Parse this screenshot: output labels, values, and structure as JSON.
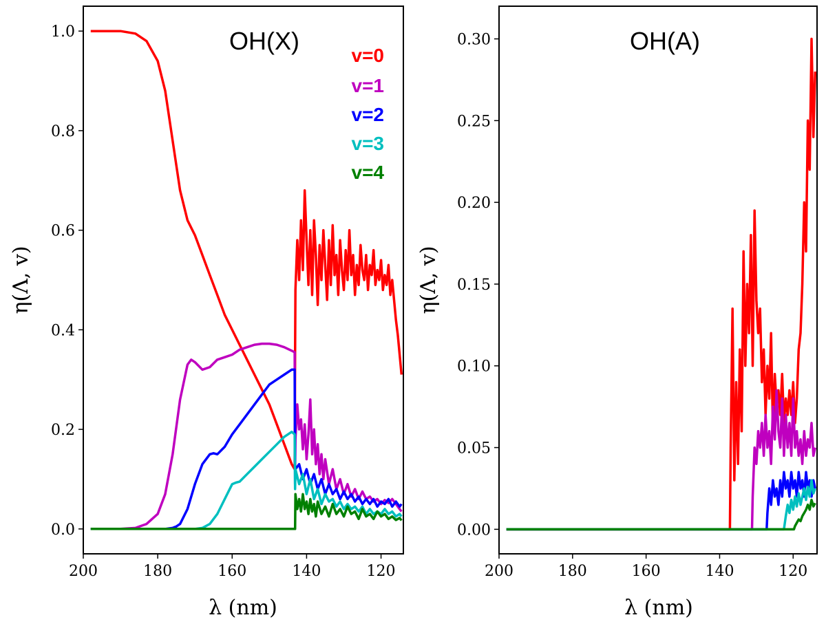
{
  "chart_data": [
    {
      "type": "line",
      "title": "OH(X)",
      "xlabel": "λ (nm)",
      "ylabel": "η(Λ, v)",
      "xlim": [
        200,
        114
      ],
      "ylim": [
        -0.05,
        1.05
      ],
      "xticks": [
        200,
        180,
        160,
        140,
        120
      ],
      "yticks": [
        0.0,
        0.2,
        0.4,
        0.6,
        0.8,
        1.0
      ],
      "xtick_labels": [
        "200",
        "180",
        "160",
        "140",
        "120"
      ],
      "ytick_labels": [
        "0.0",
        "0.2",
        "0.4",
        "0.6",
        "0.8",
        "1.0"
      ],
      "legend": {
        "placement": "top-right",
        "entries": [
          "v=0",
          "v=1",
          "v=2",
          "v=3",
          "v=4"
        ]
      },
      "series": [
        {
          "name": "v=0",
          "color": "#ff0000",
          "x": [
            198,
            190,
            186,
            183,
            180,
            178,
            176,
            174,
            172,
            170,
            168,
            166,
            164,
            162,
            160,
            158,
            156,
            154,
            152,
            150,
            148,
            146,
            144,
            143.2,
            143.1,
            143,
            142.5,
            142,
            141.5,
            141,
            140.5,
            140,
            139.5,
            139,
            138.5,
            138,
            137.5,
            137,
            136.5,
            136,
            135.5,
            135,
            134.5,
            134,
            133.5,
            133,
            132.5,
            132,
            131.5,
            131,
            130.5,
            130,
            129.5,
            129,
            128.5,
            128,
            127.5,
            127,
            126.5,
            126,
            125.5,
            125,
            124.5,
            124,
            123.5,
            123,
            122.5,
            122,
            121.5,
            121,
            120.5,
            120,
            119.5,
            119,
            118.5,
            118,
            117.5,
            117,
            116.5,
            116,
            115.5,
            115,
            114.5
          ],
          "y": [
            1.0,
            1.0,
            0.995,
            0.98,
            0.94,
            0.88,
            0.78,
            0.68,
            0.62,
            0.59,
            0.55,
            0.51,
            0.47,
            0.43,
            0.4,
            0.37,
            0.34,
            0.31,
            0.28,
            0.25,
            0.21,
            0.17,
            0.13,
            0.12,
            0.35,
            0.48,
            0.58,
            0.5,
            0.62,
            0.52,
            0.68,
            0.58,
            0.49,
            0.6,
            0.47,
            0.62,
            0.55,
            0.45,
            0.57,
            0.5,
            0.6,
            0.53,
            0.46,
            0.58,
            0.49,
            0.61,
            0.51,
            0.55,
            0.47,
            0.58,
            0.52,
            0.48,
            0.56,
            0.5,
            0.6,
            0.51,
            0.55,
            0.47,
            0.53,
            0.49,
            0.57,
            0.52,
            0.5,
            0.55,
            0.48,
            0.53,
            0.51,
            0.56,
            0.49,
            0.52,
            0.5,
            0.54,
            0.48,
            0.51,
            0.49,
            0.53,
            0.47,
            0.5,
            0.46,
            0.42,
            0.39,
            0.35,
            0.31
          ]
        },
        {
          "name": "v=1",
          "color": "#bf00bf",
          "x": [
            198,
            190,
            186,
            183,
            180,
            178,
            176,
            174,
            172,
            171,
            170,
            168,
            166,
            164,
            162,
            160,
            158,
            156,
            154,
            152,
            150,
            148,
            146,
            144,
            143.2,
            143.1,
            143,
            142.5,
            142,
            141.5,
            141,
            140.5,
            140,
            139.5,
            139,
            138.5,
            138,
            137.5,
            137,
            136.5,
            136,
            135.5,
            135,
            134,
            133,
            132,
            131,
            130,
            129,
            128,
            127,
            126,
            125,
            124,
            123,
            122,
            121,
            120,
            119,
            118,
            117,
            116,
            115,
            114.5
          ],
          "y": [
            0.0,
            0.0,
            0.002,
            0.01,
            0.03,
            0.07,
            0.15,
            0.26,
            0.33,
            0.34,
            0.335,
            0.32,
            0.325,
            0.34,
            0.345,
            0.35,
            0.36,
            0.365,
            0.37,
            0.372,
            0.372,
            0.37,
            0.365,
            0.358,
            0.355,
            0.12,
            0.18,
            0.25,
            0.2,
            0.22,
            0.16,
            0.21,
            0.14,
            0.19,
            0.26,
            0.15,
            0.2,
            0.13,
            0.17,
            0.11,
            0.15,
            0.1,
            0.14,
            0.09,
            0.12,
            0.08,
            0.1,
            0.07,
            0.09,
            0.065,
            0.08,
            0.06,
            0.075,
            0.06,
            0.065,
            0.055,
            0.06,
            0.05,
            0.058,
            0.052,
            0.06,
            0.05,
            0.04,
            0.035
          ]
        },
        {
          "name": "v=2",
          "color": "#0000ff",
          "x": [
            198,
            180,
            178,
            176,
            175,
            174,
            172,
            170,
            168,
            166,
            165,
            164,
            162,
            160,
            158,
            156,
            154,
            152,
            150,
            148,
            146,
            144,
            143.2,
            143.1,
            143,
            142,
            141,
            140,
            139,
            138,
            137,
            136,
            135,
            134,
            133,
            132,
            131,
            130,
            129,
            128,
            127,
            126,
            125,
            124,
            123,
            122,
            121,
            120,
            119,
            118,
            117,
            116,
            115,
            114.5
          ],
          "y": [
            0.0,
            0.0,
            0.0,
            0.002,
            0.005,
            0.01,
            0.04,
            0.09,
            0.13,
            0.15,
            0.152,
            0.15,
            0.165,
            0.19,
            0.21,
            0.23,
            0.25,
            0.27,
            0.29,
            0.3,
            0.31,
            0.32,
            0.32,
            0.09,
            0.12,
            0.13,
            0.1,
            0.12,
            0.09,
            0.11,
            0.08,
            0.1,
            0.07,
            0.09,
            0.07,
            0.08,
            0.06,
            0.075,
            0.06,
            0.07,
            0.055,
            0.065,
            0.05,
            0.06,
            0.05,
            0.06,
            0.045,
            0.055,
            0.05,
            0.06,
            0.045,
            0.055,
            0.045,
            0.05
          ]
        },
        {
          "name": "v=3",
          "color": "#00bfbf",
          "x": [
            198,
            172,
            170,
            168,
            166,
            164,
            162,
            160,
            159,
            158,
            156,
            154,
            152,
            150,
            148,
            146,
            144,
            143.2,
            143.1,
            143,
            142,
            141,
            140,
            139,
            138,
            137,
            136,
            135,
            134,
            133,
            132,
            131,
            130,
            129,
            128,
            127,
            126,
            125,
            124,
            123,
            122,
            121,
            120,
            119,
            118,
            117,
            116,
            115,
            114.5
          ],
          "y": [
            0.0,
            0.0,
            0.0,
            0.002,
            0.01,
            0.03,
            0.06,
            0.09,
            0.093,
            0.095,
            0.11,
            0.125,
            0.14,
            0.155,
            0.17,
            0.185,
            0.195,
            0.19,
            0.08,
            0.12,
            0.09,
            0.11,
            0.07,
            0.1,
            0.06,
            0.08,
            0.05,
            0.07,
            0.055,
            0.06,
            0.045,
            0.055,
            0.04,
            0.05,
            0.04,
            0.045,
            0.035,
            0.045,
            0.03,
            0.04,
            0.03,
            0.035,
            0.03,
            0.04,
            0.03,
            0.035,
            0.025,
            0.03,
            0.025
          ]
        },
        {
          "name": "v=4",
          "color": "#008000",
          "x": [
            198,
            160,
            150,
            144,
            143.2,
            143.1,
            143,
            142.5,
            142,
            141.5,
            141,
            140.5,
            140,
            139.5,
            139,
            138.5,
            138,
            137.5,
            137,
            136,
            135,
            134,
            133,
            132,
            131,
            130,
            129,
            128,
            127,
            126,
            125,
            124,
            123,
            122,
            121,
            120,
            119,
            118,
            117,
            116,
            115,
            114.5
          ],
          "y": [
            0.0,
            0.0,
            0.0,
            0.0,
            0.0,
            0.0,
            0.07,
            0.04,
            0.06,
            0.035,
            0.07,
            0.04,
            0.055,
            0.03,
            0.06,
            0.035,
            0.05,
            0.025,
            0.055,
            0.03,
            0.045,
            0.025,
            0.05,
            0.03,
            0.04,
            0.025,
            0.045,
            0.03,
            0.035,
            0.02,
            0.04,
            0.025,
            0.03,
            0.02,
            0.035,
            0.025,
            0.03,
            0.02,
            0.025,
            0.018,
            0.022,
            0.017
          ]
        }
      ]
    },
    {
      "type": "line",
      "title": "OH(A)",
      "xlabel": "λ (nm)",
      "ylabel": "η(Λ, v)",
      "xlim": [
        200,
        113.5
      ],
      "ylim": [
        -0.015,
        0.32
      ],
      "xticks": [
        200,
        180,
        160,
        140,
        120
      ],
      "yticks": [
        0.0,
        0.05,
        0.1,
        0.15,
        0.2,
        0.25,
        0.3
      ],
      "xtick_labels": [
        "200",
        "180",
        "160",
        "140",
        "120"
      ],
      "ytick_labels": [
        "0.00",
        "0.05",
        "0.10",
        "0.15",
        "0.20",
        "0.25",
        "0.30"
      ],
      "series": [
        {
          "name": "v=0",
          "color": "#ff0000",
          "x": [
            198,
            140,
            137.2,
            137,
            136.5,
            136,
            135.5,
            135,
            134.5,
            134,
            133.5,
            133,
            132.5,
            132,
            131.5,
            131,
            130.5,
            130,
            129.5,
            129,
            128.5,
            128,
            127.5,
            127,
            126.5,
            126,
            125.5,
            125,
            124.5,
            124,
            123.5,
            123,
            122.5,
            122,
            121.5,
            121,
            120.5,
            120,
            119.5,
            119,
            118.5,
            118,
            117.5,
            117,
            116.5,
            116,
            115.5,
            115,
            114.5,
            114
          ],
          "y": [
            0.0,
            0.0,
            0.0,
            0.05,
            0.135,
            0.03,
            0.09,
            0.04,
            0.11,
            0.06,
            0.17,
            0.1,
            0.15,
            0.12,
            0.18,
            0.1,
            0.195,
            0.14,
            0.12,
            0.135,
            0.09,
            0.11,
            0.07,
            0.1,
            0.08,
            0.12,
            0.06,
            0.095,
            0.075,
            0.085,
            0.07,
            0.095,
            0.065,
            0.08,
            0.07,
            0.085,
            0.07,
            0.09,
            0.065,
            0.08,
            0.11,
            0.12,
            0.15,
            0.2,
            0.17,
            0.25,
            0.22,
            0.3,
            0.24,
            0.28
          ]
        },
        {
          "name": "v=1",
          "color": "#bf00bf",
          "x": [
            198,
            135,
            131.2,
            131,
            130.5,
            130,
            129.5,
            129,
            128.5,
            128,
            127.5,
            127,
            126.5,
            126,
            125.5,
            125,
            124.5,
            124,
            123.5,
            123,
            122.5,
            122,
            121.5,
            121,
            120.5,
            120,
            119.5,
            119,
            118.5,
            118,
            117.5,
            117,
            116.5,
            116,
            115.5,
            115,
            114.5,
            114
          ],
          "y": [
            0.0,
            0.0,
            0.0,
            0.02,
            0.05,
            0.04,
            0.06,
            0.05,
            0.065,
            0.045,
            0.07,
            0.05,
            0.06,
            0.04,
            0.075,
            0.055,
            0.085,
            0.06,
            0.05,
            0.08,
            0.045,
            0.07,
            0.05,
            0.065,
            0.045,
            0.08,
            0.05,
            0.06,
            0.045,
            0.055,
            0.04,
            0.06,
            0.045,
            0.055,
            0.05,
            0.065,
            0.045,
            0.05
          ]
        },
        {
          "name": "v=2",
          "color": "#0000ff",
          "x": [
            198,
            130,
            127.2,
            127,
            126.5,
            126,
            125.5,
            125,
            124.5,
            124,
            123.5,
            123,
            122.5,
            122,
            121.5,
            121,
            120.5,
            120,
            119.5,
            119,
            118.5,
            118,
            117.5,
            117,
            116.5,
            116,
            115.5,
            115,
            114.5,
            114
          ],
          "y": [
            0.0,
            0.0,
            0.0,
            0.01,
            0.025,
            0.015,
            0.03,
            0.02,
            0.025,
            0.015,
            0.03,
            0.02,
            0.035,
            0.025,
            0.03,
            0.02,
            0.035,
            0.025,
            0.03,
            0.02,
            0.035,
            0.025,
            0.03,
            0.02,
            0.035,
            0.025,
            0.03,
            0.02,
            0.03,
            0.025
          ]
        },
        {
          "name": "v=3",
          "color": "#00bfbf",
          "x": [
            198,
            125,
            122.5,
            122,
            121.5,
            121,
            120.5,
            120,
            119.5,
            119,
            118.5,
            118,
            117.5,
            117,
            116.5,
            116,
            115.5,
            115,
            114.5,
            114
          ],
          "y": [
            0.0,
            0.0,
            0.0,
            0.008,
            0.015,
            0.01,
            0.018,
            0.012,
            0.02,
            0.014,
            0.022,
            0.015,
            0.02,
            0.025,
            0.018,
            0.026,
            0.02,
            0.03,
            0.022,
            0.025
          ]
        },
        {
          "name": "v=4",
          "color": "#008000",
          "x": [
            198,
            122,
            119.8,
            119.5,
            119,
            118.5,
            118,
            117.5,
            117,
            116.5,
            116,
            115.5,
            115,
            114.5,
            114
          ],
          "y": [
            0.0,
            0.0,
            0.0,
            0.002,
            0.004,
            0.006,
            0.005,
            0.008,
            0.01,
            0.012,
            0.015,
            0.012,
            0.018,
            0.014,
            0.016
          ]
        }
      ]
    }
  ]
}
